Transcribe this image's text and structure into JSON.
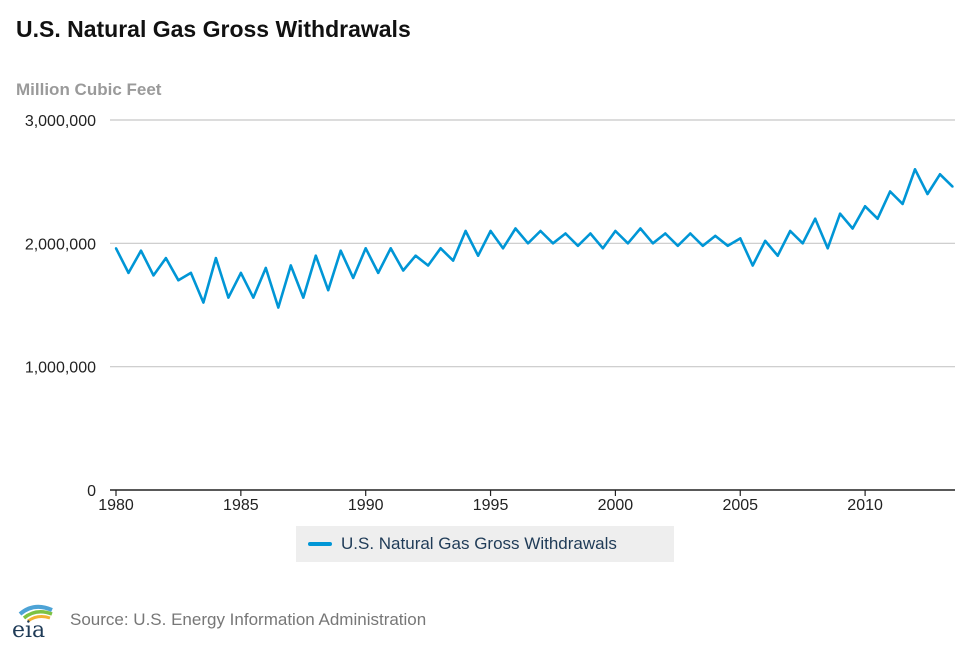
{
  "title": "U.S. Natural Gas Gross Withdrawals",
  "units_label": "Million Cubic Feet",
  "source": "Source: U.S. Energy Information Administration",
  "logo_text": "eia",
  "colors": {
    "series": "#0096d6",
    "grid": "#c8c8c8",
    "axis": "#222222"
  },
  "chart_data": {
    "type": "line",
    "title": "U.S. Natural Gas Gross Withdrawals",
    "ylabel": "Million Cubic Feet",
    "xlabel": "",
    "xlim": [
      1980,
      2013.6
    ],
    "ylim": [
      0,
      3000000
    ],
    "y_ticks": [
      "3,000,000",
      "2,000,000",
      "1,000,000",
      "0"
    ],
    "y_tick_values": [
      3000000,
      2000000,
      1000000,
      0
    ],
    "x_ticks": [
      "1980",
      "1985",
      "1990",
      "1995",
      "2000",
      "2005",
      "2010"
    ],
    "x_tick_values": [
      1980,
      1985,
      1990,
      1995,
      2000,
      2005,
      2010
    ],
    "grid": true,
    "legend_position": "bottom-center",
    "series": [
      {
        "name": "U.S. Natural Gas Gross Withdrawals",
        "x": [
          1980,
          1980.5,
          1981,
          1981.5,
          1982,
          1982.5,
          1983,
          1983.5,
          1984,
          1984.5,
          1985,
          1985.5,
          1986,
          1986.5,
          1987,
          1987.5,
          1988,
          1988.5,
          1989,
          1989.5,
          1990,
          1990.5,
          1991,
          1991.5,
          1992,
          1992.5,
          1993,
          1993.5,
          1994,
          1994.5,
          1995,
          1995.5,
          1996,
          1996.5,
          1997,
          1997.5,
          1998,
          1998.5,
          1999,
          1999.5,
          2000,
          2000.5,
          2001,
          2001.5,
          2002,
          2002.5,
          2003,
          2003.5,
          2004,
          2004.5,
          2005,
          2005.5,
          2006,
          2006.5,
          2007,
          2007.5,
          2008,
          2008.5,
          2009,
          2009.5,
          2010,
          2010.5,
          2011,
          2011.5,
          2012,
          2012.5,
          2013,
          2013.5
        ],
        "values": [
          1960000,
          1760000,
          1940000,
          1740000,
          1880000,
          1700000,
          1760000,
          1520000,
          1880000,
          1560000,
          1760000,
          1560000,
          1800000,
          1480000,
          1820000,
          1560000,
          1900000,
          1620000,
          1940000,
          1720000,
          1960000,
          1760000,
          1960000,
          1780000,
          1900000,
          1820000,
          1960000,
          1860000,
          2100000,
          1900000,
          2100000,
          1960000,
          2120000,
          2000000,
          2100000,
          2000000,
          2080000,
          1980000,
          2080000,
          1960000,
          2100000,
          2000000,
          2120000,
          2000000,
          2080000,
          1980000,
          2080000,
          1980000,
          2060000,
          1980000,
          2040000,
          1820000,
          2020000,
          1900000,
          2100000,
          2000000,
          2200000,
          1960000,
          2240000,
          2120000,
          2300000,
          2200000,
          2420000,
          2320000,
          2600000,
          2400000,
          2560000,
          2460000
        ]
      }
    ]
  }
}
